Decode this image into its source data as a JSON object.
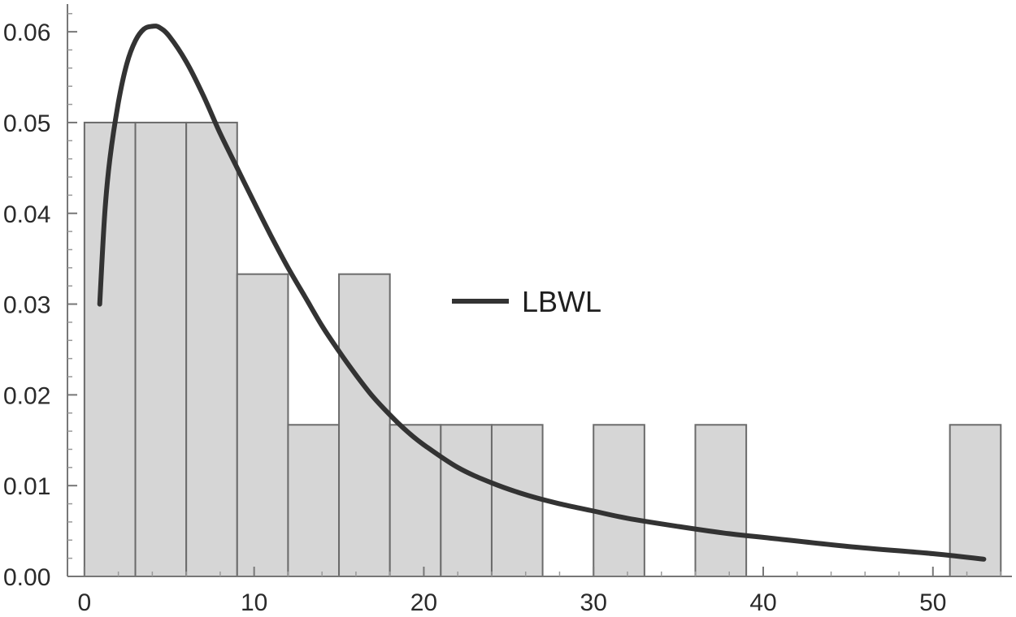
{
  "chart_data": {
    "type": "bar",
    "title": "",
    "xlabel": "",
    "ylabel": "",
    "xlim": [
      -1,
      54.8
    ],
    "ylim": [
      0,
      0.0635
    ],
    "x_ticks": [
      0,
      10,
      20,
      30,
      40,
      50
    ],
    "y_ticks": [
      0.0,
      0.01,
      0.02,
      0.03,
      0.04,
      0.05,
      0.06
    ],
    "y_tick_labels": [
      "0.00",
      "0.01",
      "0.02",
      "0.03",
      "0.04",
      "0.05",
      "0.06"
    ],
    "grid": false,
    "legend_position": "center-right",
    "histogram": {
      "bins": [
        {
          "start": 0,
          "end": 3,
          "value": 0.05
        },
        {
          "start": 3,
          "end": 6,
          "value": 0.05
        },
        {
          "start": 6,
          "end": 9,
          "value": 0.05
        },
        {
          "start": 9,
          "end": 12,
          "value": 0.0333
        },
        {
          "start": 12,
          "end": 15,
          "value": 0.0167
        },
        {
          "start": 15,
          "end": 18,
          "value": 0.0333
        },
        {
          "start": 18,
          "end": 21,
          "value": 0.0167
        },
        {
          "start": 21,
          "end": 24,
          "value": 0.0167
        },
        {
          "start": 24,
          "end": 27,
          "value": 0.0167
        },
        {
          "start": 30,
          "end": 33,
          "value": 0.0167
        },
        {
          "start": 36,
          "end": 39,
          "value": 0.0167
        },
        {
          "start": 51,
          "end": 54,
          "value": 0.0167
        }
      ]
    },
    "series": [
      {
        "name": "LBWL",
        "type": "line",
        "color": "#333333",
        "x": [
          0.9,
          1.2,
          1.5,
          2,
          2.5,
          3,
          3.5,
          4,
          4.4,
          5,
          6,
          7,
          8,
          9,
          10,
          11,
          12,
          13,
          14,
          15,
          16,
          17,
          18,
          19,
          20,
          22,
          24,
          26,
          28,
          30,
          32,
          35,
          38,
          40,
          45,
          50,
          53
        ],
        "y": [
          0.03,
          0.04,
          0.046,
          0.0522,
          0.0565,
          0.059,
          0.0603,
          0.0606,
          0.0605,
          0.0595,
          0.0567,
          0.053,
          0.0488,
          0.045,
          0.0412,
          0.0375,
          0.034,
          0.0308,
          0.0276,
          0.0248,
          0.0222,
          0.0198,
          0.0178,
          0.016,
          0.0145,
          0.012,
          0.0103,
          0.009,
          0.008,
          0.0072,
          0.0064,
          0.0055,
          0.0047,
          0.0043,
          0.0033,
          0.0025,
          0.0019
        ]
      }
    ]
  }
}
